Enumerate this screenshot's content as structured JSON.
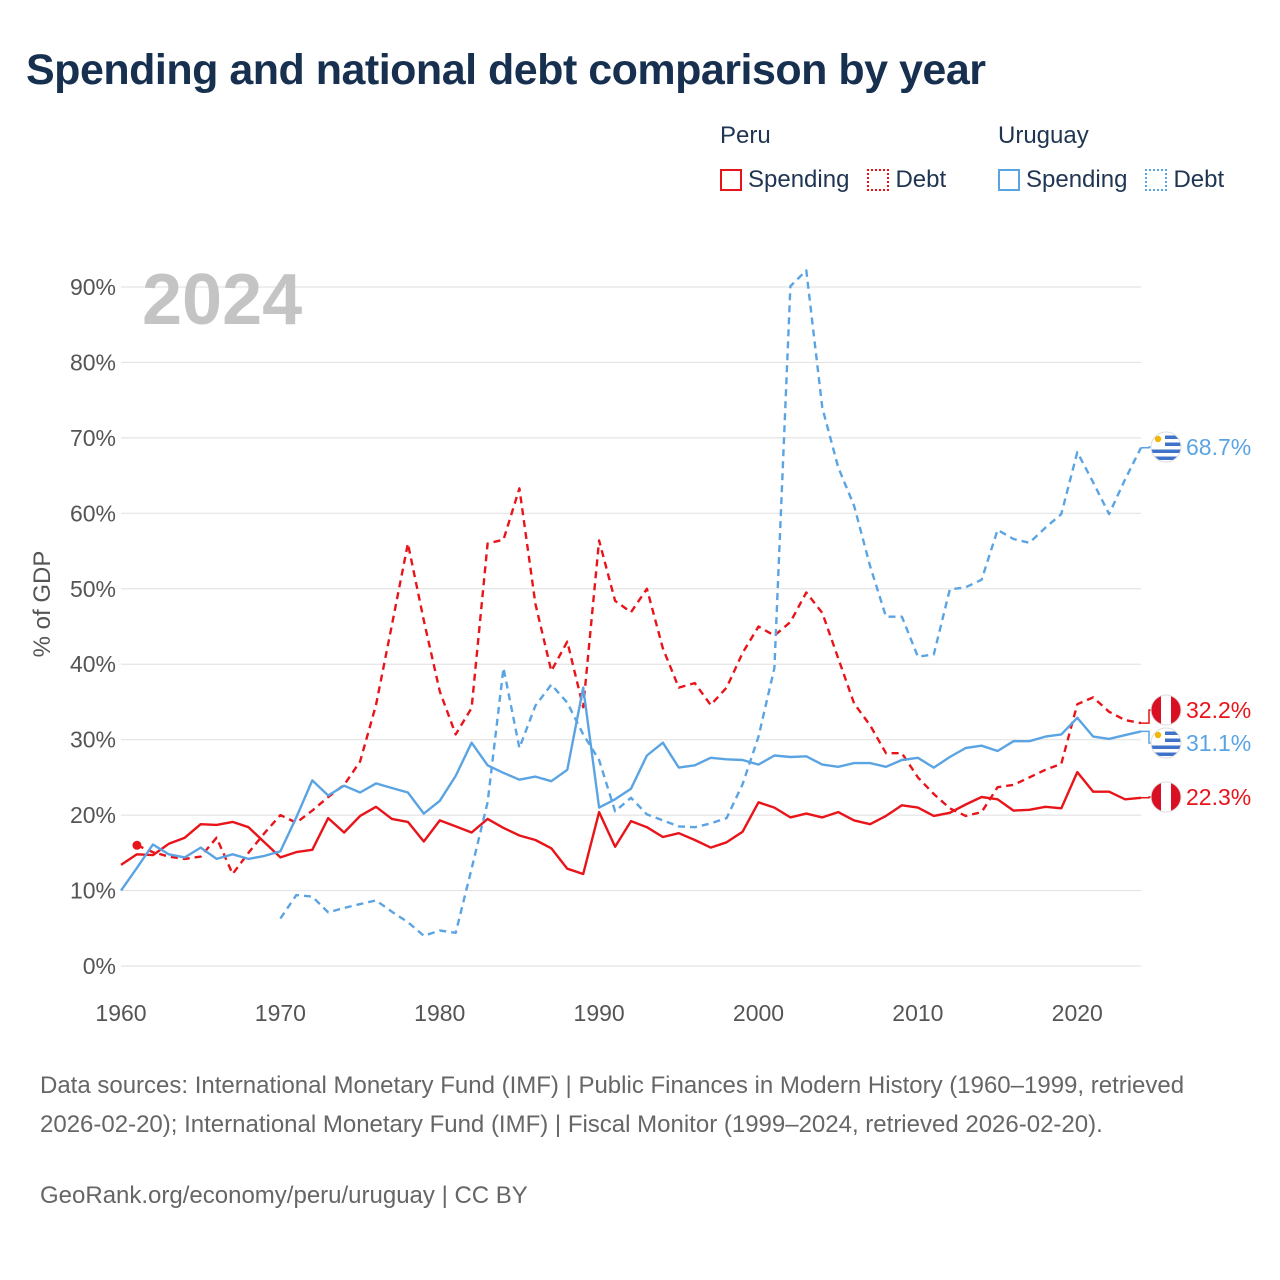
{
  "title": "Spending and national debt comparison by year",
  "legend": {
    "groups": [
      {
        "country": "Peru",
        "color": "#e8141a",
        "items": [
          {
            "label": "Spending",
            "style": "solid"
          },
          {
            "label": "Debt",
            "style": "dotted"
          }
        ]
      },
      {
        "country": "Uruguay",
        "color": "#5ba4e3",
        "items": [
          {
            "label": "Spending",
            "style": "solid"
          },
          {
            "label": "Debt",
            "style": "dotted"
          }
        ]
      }
    ]
  },
  "chart_data": {
    "type": "line",
    "year_label": "2024",
    "ylabel": "% of GDP",
    "xlim": [
      1960,
      2024
    ],
    "ylim": [
      0,
      90
    ],
    "x_ticks": [
      1960,
      1970,
      1980,
      1990,
      2000,
      2010,
      2020
    ],
    "y_ticks": [
      0,
      10,
      20,
      30,
      40,
      50,
      60,
      70,
      80,
      90
    ],
    "y_tick_labels": [
      "0%",
      "10%",
      "20%",
      "30%",
      "40%",
      "50%",
      "60%",
      "70%",
      "80%",
      "90%"
    ],
    "series": [
      {
        "name": "Peru Spending",
        "country": "Peru",
        "kind": "spending",
        "color": "#e8141a",
        "end_label": "22.3%",
        "years": [
          1960,
          1961,
          1962,
          1963,
          1964,
          1965,
          1966,
          1967,
          1968,
          1969,
          1970,
          1971,
          1972,
          1973,
          1974,
          1975,
          1976,
          1977,
          1978,
          1979,
          1980,
          1981,
          1982,
          1983,
          1984,
          1985,
          1986,
          1987,
          1988,
          1989,
          1990,
          1991,
          1992,
          1993,
          1994,
          1995,
          1996,
          1997,
          1998,
          1999,
          2000,
          2001,
          2002,
          2003,
          2004,
          2005,
          2006,
          2007,
          2008,
          2009,
          2010,
          2011,
          2012,
          2013,
          2014,
          2015,
          2016,
          2017,
          2018,
          2019,
          2020,
          2021,
          2022,
          2023,
          2024
        ],
        "values": [
          13.4,
          14.8,
          14.7,
          16.2,
          17.0,
          18.8,
          18.7,
          19.1,
          18.4,
          16.4,
          14.4,
          15.1,
          15.4,
          19.6,
          17.7,
          19.9,
          21.1,
          19.5,
          19.1,
          16.5,
          19.3,
          18.5,
          17.7,
          19.5,
          18.3,
          17.3,
          16.7,
          15.6,
          12.9,
          12.2,
          20.4,
          15.8,
          19.2,
          18.4,
          17.1,
          17.6,
          16.7,
          15.7,
          16.4,
          17.8,
          21.7,
          21.0,
          19.7,
          20.2,
          19.7,
          20.4,
          19.3,
          18.8,
          19.9,
          21.3,
          21.0,
          19.9,
          20.3,
          21.4,
          22.4,
          22.1,
          20.6,
          20.7,
          21.1,
          20.9,
          25.7,
          23.1,
          23.1,
          22.1,
          22.3
        ]
      },
      {
        "name": "Peru Debt",
        "country": "Peru",
        "kind": "debt",
        "color": "#e8141a",
        "end_label": "32.2%",
        "years": [
          1961,
          1962,
          1963,
          1964,
          1965,
          1966,
          1967,
          1968,
          1969,
          1970,
          1971,
          1972,
          1973,
          1974,
          1975,
          1976,
          1977,
          1978,
          1979,
          1980,
          1981,
          1982,
          1983,
          1984,
          1985,
          1986,
          1987,
          1988,
          1989,
          1990,
          1991,
          1992,
          1993,
          1994,
          1995,
          1996,
          1997,
          1998,
          1999,
          2000,
          2001,
          2002,
          2003,
          2004,
          2005,
          2006,
          2007,
          2008,
          2009,
          2010,
          2011,
          2012,
          2013,
          2014,
          2015,
          2016,
          2017,
          2018,
          2019,
          2020,
          2021,
          2022,
          2023,
          2024
        ],
        "values": [
          16.0,
          15.1,
          14.5,
          14.2,
          14.5,
          17.0,
          12.2,
          15.0,
          17.6,
          20.0,
          19.0,
          20.6,
          22.4,
          24.0,
          27.1,
          34.6,
          45.2,
          56.0,
          45.8,
          36.4,
          30.7,
          34.2,
          56.0,
          56.5,
          63.3,
          48.0,
          39.1,
          43.0,
          34.3,
          56.4,
          48.4,
          46.9,
          50.0,
          42.1,
          36.9,
          37.5,
          34.6,
          36.9,
          41.5,
          45.0,
          43.8,
          45.6,
          49.5,
          46.8,
          40.8,
          34.8,
          31.9,
          28.2,
          28.2,
          25.0,
          22.8,
          20.9,
          19.9,
          20.4,
          23.7,
          24.0,
          25.0,
          26.0,
          26.8,
          34.7,
          35.6,
          33.7,
          32.6,
          32.2
        ]
      },
      {
        "name": "Uruguay Spending",
        "country": "Uruguay",
        "kind": "spending",
        "color": "#5ba4e3",
        "end_label": "31.1%",
        "years": [
          1960,
          1961,
          1962,
          1963,
          1964,
          1965,
          1966,
          1967,
          1968,
          1969,
          1970,
          1971,
          1972,
          1973,
          1974,
          1975,
          1976,
          1977,
          1978,
          1979,
          1980,
          1981,
          1982,
          1983,
          1984,
          1985,
          1986,
          1987,
          1988,
          1989,
          1990,
          1991,
          1992,
          1993,
          1994,
          1995,
          1996,
          1997,
          1998,
          1999,
          2000,
          2001,
          2002,
          2003,
          2004,
          2005,
          2006,
          2007,
          2008,
          2009,
          2010,
          2011,
          2012,
          2013,
          2014,
          2015,
          2016,
          2017,
          2018,
          2019,
          2020,
          2021,
          2022,
          2023,
          2024
        ],
        "values": [
          10.0,
          13.0,
          16.1,
          14.8,
          14.4,
          15.7,
          14.2,
          14.8,
          14.2,
          14.6,
          15.2,
          19.7,
          24.6,
          22.6,
          23.9,
          23.0,
          24.2,
          23.6,
          23.0,
          20.2,
          21.9,
          25.2,
          29.6,
          26.6,
          25.6,
          24.7,
          25.1,
          24.5,
          26.0,
          36.9,
          21.0,
          22.1,
          23.5,
          27.9,
          29.6,
          26.3,
          26.6,
          27.6,
          27.4,
          27.3,
          26.7,
          27.9,
          27.7,
          27.8,
          26.7,
          26.4,
          26.9,
          26.9,
          26.4,
          27.3,
          27.6,
          26.3,
          27.7,
          28.9,
          29.2,
          28.5,
          29.8,
          29.8,
          30.4,
          30.7,
          32.9,
          30.4,
          30.1,
          30.6,
          31.1
        ]
      },
      {
        "name": "Uruguay Debt",
        "country": "Uruguay",
        "kind": "debt",
        "color": "#5ba4e3",
        "end_label": "68.7%",
        "years": [
          1970,
          1971,
          1972,
          1973,
          1974,
          1975,
          1976,
          1977,
          1978,
          1979,
          1980,
          1981,
          1982,
          1983,
          1984,
          1985,
          1986,
          1987,
          1988,
          1989,
          1990,
          1991,
          1992,
          1993,
          1994,
          1995,
          1996,
          1997,
          1998,
          1999,
          2000,
          2001,
          2002,
          2003,
          2004,
          2005,
          2006,
          2007,
          2008,
          2009,
          2010,
          2011,
          2012,
          2013,
          2014,
          2015,
          2016,
          2017,
          2018,
          2019,
          2020,
          2021,
          2022,
          2023,
          2024
        ],
        "values": [
          6.3,
          9.4,
          9.2,
          7.1,
          7.7,
          8.2,
          8.7,
          7.2,
          5.8,
          4.0,
          4.7,
          4.4,
          12.9,
          21.7,
          39.5,
          28.9,
          34.5,
          37.3,
          34.9,
          30.7,
          27.3,
          20.5,
          22.3,
          20.1,
          19.3,
          18.5,
          18.4,
          18.9,
          19.6,
          24.1,
          30.4,
          39.5,
          90.1,
          92.2,
          74.0,
          66.1,
          61.0,
          53.0,
          46.3,
          46.3,
          41.0,
          41.3,
          49.9,
          50.2,
          51.2,
          57.8,
          56.6,
          56.1,
          58.1,
          59.9,
          68.1,
          64.1,
          59.9,
          64.5,
          68.7
        ]
      }
    ]
  },
  "footer": {
    "source": "Data sources: International Monetary Fund (IMF) | Public Finances in Modern History (1960–1999, retrieved 2026-02-20); International Monetary Fund (IMF) | Fiscal Monitor (1999–2024, retrieved 2026-02-20).",
    "credit": "GeoRank.org/economy/peru/uruguay | CC BY"
  }
}
